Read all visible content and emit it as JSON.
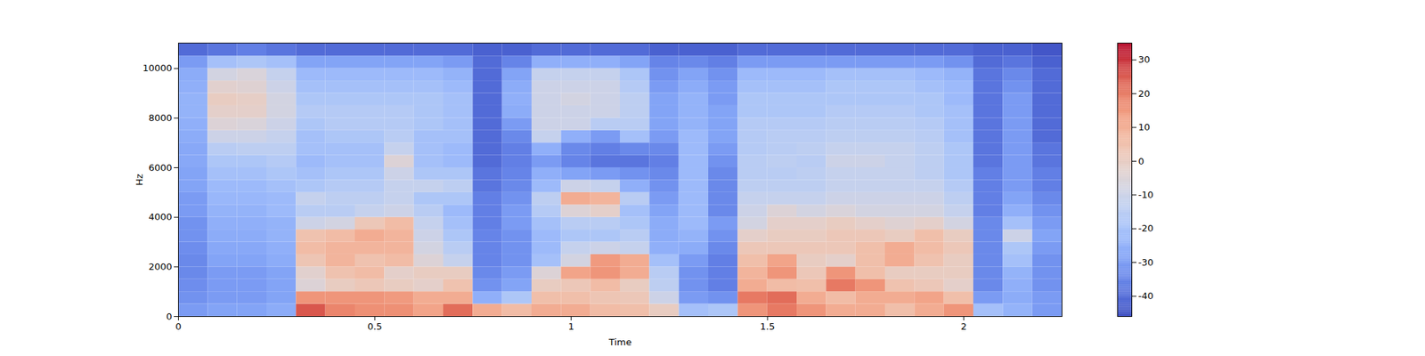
{
  "chart_data": {
    "type": "heatmap",
    "xlabel": "Time",
    "ylabel": "Hz",
    "xlim": [
      0,
      2.25
    ],
    "ylim": [
      0,
      11025
    ],
    "xticks": [
      0,
      0.5,
      1,
      1.5,
      2
    ],
    "yticks": [
      0,
      2000,
      4000,
      6000,
      8000,
      10000
    ],
    "color": "coolwarm",
    "colorbar_range": [
      -46,
      35
    ],
    "colorbar_ticks": [
      -40,
      -30,
      -20,
      -10,
      0,
      10,
      20,
      30
    ],
    "time_edges": [
      0,
      0.075,
      0.15,
      0.225,
      0.3,
      0.375,
      0.45,
      0.525,
      0.6,
      0.675,
      0.75,
      0.825,
      0.9,
      0.975,
      1.05,
      1.125,
      1.2,
      1.275,
      1.35,
      1.425,
      1.5,
      1.575,
      1.65,
      1.725,
      1.8,
      1.875,
      1.95,
      2.025,
      2.1,
      2.175,
      2.25
    ],
    "freq_edges": [
      0,
      500,
      1000,
      1500,
      2000,
      2500,
      3000,
      3500,
      4000,
      4500,
      5000,
      5500,
      6000,
      6500,
      7000,
      7500,
      8000,
      8500,
      9000,
      9500,
      10000,
      10500,
      11025
    ],
    "cells": [
      [
        -30,
        -32,
        -33,
        -34,
        -34,
        -33,
        -32,
        -32,
        -30,
        -30,
        -28,
        -28,
        -27,
        -27,
        -26,
        -25,
        -24,
        -24,
        -25,
        -26,
        -30,
        -40
      ],
      [
        -28,
        -30,
        -30,
        -30,
        -28,
        -27,
        -26,
        -25,
        -24,
        -23,
        -22,
        -20,
        -18,
        -15,
        -10,
        -5,
        -2,
        0,
        -3,
        -8,
        -20,
        -38
      ],
      [
        -28,
        -30,
        -30,
        -30,
        -28,
        -27,
        -26,
        -25,
        -24,
        -23,
        -22,
        -20,
        -18,
        -14,
        -10,
        -6,
        -2,
        -1,
        -4,
        -6,
        -18,
        -36
      ],
      [
        -26,
        -28,
        -28,
        -28,
        -26,
        -25,
        -24,
        -24,
        -22,
        -22,
        -20,
        -18,
        -16,
        -14,
        -12,
        -10,
        -8,
        -8,
        -10,
        -12,
        -20,
        -38
      ],
      [
        25,
        15,
        -5,
        -3,
        3,
        6,
        4,
        -10,
        -15,
        -12,
        -18,
        -20,
        -22,
        -20,
        -20,
        -18,
        -16,
        -18,
        -20,
        -22,
        -28,
        -40
      ],
      [
        18,
        15,
        0,
        4,
        8,
        8,
        6,
        -8,
        -15,
        -14,
        -16,
        -18,
        -20,
        -20,
        -18,
        -16,
        -16,
        -18,
        -20,
        -22,
        -28,
        -40
      ],
      [
        16,
        15,
        2,
        6,
        4,
        8,
        10,
        2,
        -12,
        -14,
        -16,
        -18,
        -20,
        -20,
        -18,
        -16,
        -16,
        -18,
        -20,
        -22,
        -28,
        -40
      ],
      [
        16,
        14,
        0,
        -2,
        6,
        8,
        8,
        6,
        -10,
        -12,
        -12,
        -10,
        -5,
        -12,
        -15,
        -16,
        -16,
        -18,
        -20,
        -22,
        -28,
        -40
      ],
      [
        12,
        10,
        -2,
        0,
        -5,
        -8,
        -10,
        -12,
        -15,
        -18,
        -12,
        -18,
        -20,
        -20,
        -20,
        -18,
        -18,
        -18,
        -20,
        -22,
        -28,
        -40
      ],
      [
        22,
        10,
        4,
        0,
        -12,
        -15,
        -18,
        -20,
        -22,
        -18,
        -14,
        -18,
        -22,
        -22,
        -20,
        -20,
        -20,
        -20,
        -22,
        -24,
        -30,
        -40
      ],
      [
        10,
        -25,
        -32,
        -34,
        -35,
        -35,
        -35,
        -36,
        -36,
        -36,
        -38,
        -38,
        -40,
        -40,
        -40,
        -40,
        -40,
        -40,
        -40,
        -40,
        -40,
        -42
      ],
      [
        6,
        -18,
        -28,
        -30,
        -32,
        -32,
        -32,
        -30,
        -30,
        -32,
        -34,
        -35,
        -36,
        -36,
        -34,
        -30,
        -26,
        -25,
        -26,
        -28,
        -35,
        -42
      ],
      [
        10,
        5,
        0,
        -5,
        -20,
        -22,
        -22,
        -20,
        -16,
        -14,
        -22,
        -25,
        -30,
        -25,
        -12,
        -10,
        -10,
        -10,
        -10,
        -12,
        -25,
        -40
      ],
      [
        10,
        5,
        2,
        12,
        -8,
        -12,
        -18,
        -15,
        -5,
        10,
        -10,
        -28,
        -35,
        -34,
        -25,
        -10,
        -10,
        -8,
        -10,
        -12,
        -25,
        -40
      ],
      [
        6,
        3,
        6,
        15,
        14,
        -10,
        -18,
        -15,
        -2,
        8,
        -12,
        -30,
        -38,
        -36,
        -30,
        -15,
        -10,
        -10,
        -10,
        -12,
        -25,
        -40
      ],
      [
        5,
        2,
        0,
        10,
        10,
        -12,
        -15,
        -18,
        -20,
        -15,
        -25,
        -32,
        -38,
        -34,
        -20,
        -15,
        -14,
        -14,
        -16,
        -18,
        -28,
        -40
      ],
      [
        0,
        -10,
        -14,
        -15,
        -20,
        -25,
        -26,
        -26,
        -28,
        -30,
        -32,
        -34,
        -36,
        -34,
        -30,
        -28,
        -28,
        -28,
        -30,
        -32,
        -35,
        -42
      ],
      [
        -20,
        -30,
        -32,
        -32,
        -30,
        -26,
        -24,
        -22,
        -22,
        -22,
        -22,
        -22,
        -22,
        -22,
        -22,
        -24,
        -24,
        -24,
        -26,
        -28,
        -34,
        -42
      ],
      [
        -18,
        -32,
        -36,
        -36,
        -36,
        -34,
        -32,
        -30,
        -34,
        -34,
        -34,
        -34,
        -32,
        -30,
        -28,
        -28,
        -28,
        -30,
        -30,
        -32,
        -36,
        -42
      ],
      [
        15,
        20,
        10,
        8,
        5,
        2,
        -2,
        -8,
        -10,
        -12,
        -14,
        -15,
        -15,
        -16,
        -16,
        -16,
        -18,
        -18,
        -20,
        -22,
        -30,
        -40
      ],
      [
        20,
        22,
        6,
        15,
        12,
        2,
        0,
        -2,
        -5,
        -12,
        -14,
        -15,
        -14,
        -15,
        -15,
        -16,
        -18,
        -18,
        -20,
        -22,
        -30,
        -40
      ],
      [
        15,
        10,
        5,
        2,
        0,
        2,
        0,
        -2,
        -8,
        -12,
        -14,
        -14,
        -15,
        -14,
        -15,
        -16,
        -18,
        -18,
        -20,
        -22,
        -30,
        -40
      ],
      [
        10,
        6,
        20,
        15,
        -2,
        2,
        2,
        0,
        -6,
        -10,
        -12,
        -12,
        -10,
        -12,
        -14,
        -15,
        -16,
        -18,
        -18,
        -20,
        -30,
        -40
      ],
      [
        10,
        10,
        15,
        5,
        5,
        5,
        2,
        -2,
        -8,
        -10,
        -12,
        -12,
        -10,
        -12,
        -14,
        -15,
        -16,
        -18,
        -18,
        -20,
        -30,
        -40
      ],
      [
        5,
        10,
        4,
        0,
        10,
        10,
        0,
        -4,
        -8,
        -10,
        -12,
        -12,
        -12,
        -12,
        -14,
        -15,
        -16,
        -18,
        -18,
        -20,
        -30,
        -40
      ],
      [
        10,
        12,
        2,
        0,
        4,
        6,
        5,
        -2,
        -8,
        -10,
        -12,
        -14,
        -14,
        -14,
        -15,
        -16,
        -18,
        -18,
        -20,
        -22,
        -30,
        -40
      ],
      [
        15,
        5,
        -2,
        0,
        0,
        2,
        0,
        -8,
        -12,
        -14,
        -16,
        -18,
        -18,
        -18,
        -20,
        -20,
        -20,
        -22,
        -22,
        -24,
        -32,
        -40
      ],
      [
        -20,
        -30,
        -34,
        -34,
        -34,
        -34,
        -34,
        -34,
        -36,
        -36,
        -36,
        -36,
        -38,
        -38,
        -38,
        -38,
        -38,
        -38,
        -38,
        -38,
        -40,
        -42
      ],
      [
        -24,
        -26,
        -25,
        -24,
        -20,
        -18,
        -10,
        -20,
        -25,
        -28,
        -30,
        -30,
        -30,
        -30,
        -30,
        -30,
        -30,
        -30,
        -32,
        -34,
        -38,
        -42
      ],
      [
        -30,
        -30,
        -32,
        -32,
        -32,
        -30,
        -28,
        -30,
        -32,
        -34,
        -36,
        -36,
        -38,
        -38,
        -40,
        -40,
        -40,
        -40,
        -40,
        -40,
        -42,
        -44
      ]
    ]
  }
}
